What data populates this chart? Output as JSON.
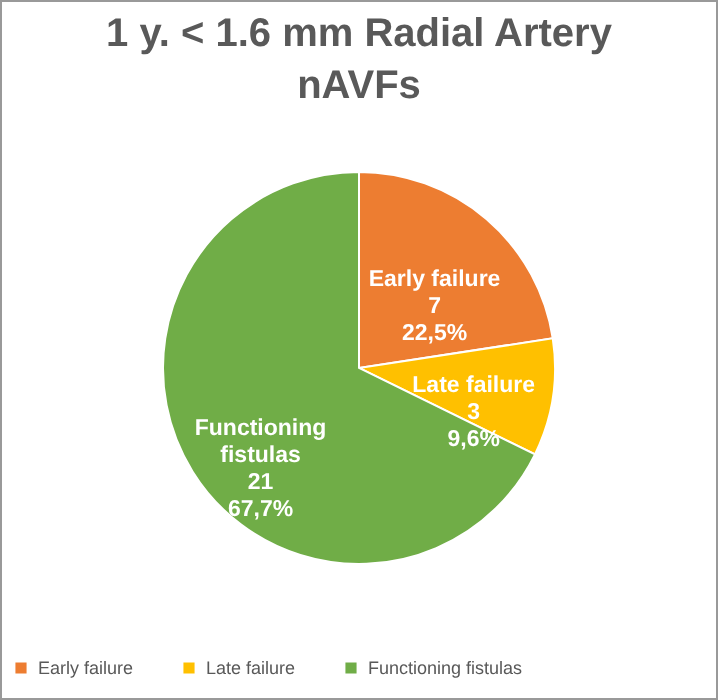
{
  "chart_data": {
    "type": "pie",
    "title": "1 y. < 1.6 mm Radial Artery nAVFs",
    "categories": [
      "Early failure",
      "Late failure",
      "Functioning fistulas"
    ],
    "values": [
      7,
      3,
      21
    ],
    "value_labels": [
      "7\n22,5%",
      "3\n9,6%",
      "21\n67,7%"
    ],
    "colors": [
      "#ed7d31",
      "#ffc000",
      "#70ad47"
    ],
    "legend": "bottom"
  }
}
